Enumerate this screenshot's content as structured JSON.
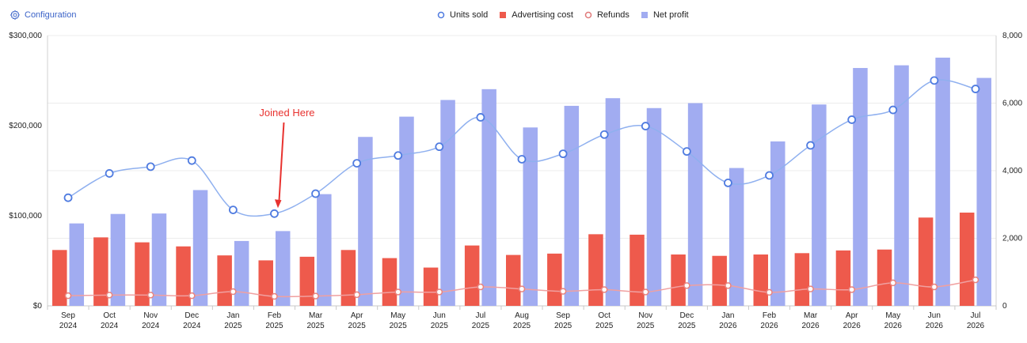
{
  "toolbar": {
    "config_label": "Configuration",
    "config_icon": "gear-icon"
  },
  "colors": {
    "units": "#8fb0ef",
    "advertising": "#ee5a4c",
    "refunds": "#f0a0a0",
    "net_profit": "#a1acf1",
    "annotation": "#e8322f"
  },
  "chart_data": {
    "type": "bar",
    "title": "",
    "legend_position": "top-center",
    "grid": true,
    "categories": [
      "Sep 2024",
      "Oct 2024",
      "Nov 2024",
      "Dec 2024",
      "Jan 2025",
      "Feb 2025",
      "Mar 2025",
      "Apr 2025",
      "May 2025",
      "Jun 2025",
      "Jul 2025",
      "Aug 2025",
      "Sep 2025",
      "Oct 2025",
      "Nov 2025",
      "Dec 2025",
      "Jan 2026",
      "Feb 2026",
      "Mar 2026",
      "Apr 2026",
      "May 2026",
      "Jun 2026",
      "Jul 2026"
    ],
    "x_tick_labels": [
      [
        "Sep",
        "2024"
      ],
      [
        "Oct",
        "2024"
      ],
      [
        "Nov",
        "2024"
      ],
      [
        "Dec",
        "2024"
      ],
      [
        "Jan",
        "2025"
      ],
      [
        "Feb",
        "2025"
      ],
      [
        "Mar",
        "2025"
      ],
      [
        "Apr",
        "2025"
      ],
      [
        "May",
        "2025"
      ],
      [
        "Jun",
        "2025"
      ],
      [
        "Jul",
        "2025"
      ],
      [
        "Aug",
        "2025"
      ],
      [
        "Sep",
        "2025"
      ],
      [
        "Oct",
        "2025"
      ],
      [
        "Nov",
        "2025"
      ],
      [
        "Dec",
        "2025"
      ],
      [
        "Jan",
        "2026"
      ],
      [
        "Feb",
        "2026"
      ],
      [
        "Mar",
        "2026"
      ],
      [
        "Apr",
        "2026"
      ],
      [
        "May",
        "2026"
      ],
      [
        "Jun",
        "2026"
      ],
      [
        "Jul",
        "2026"
      ]
    ],
    "y_left": {
      "ticks": [
        "$0",
        "$100,000",
        "$200,000",
        "$300,000"
      ],
      "ylim": [
        0,
        300000
      ]
    },
    "y_right": {
      "ticks": [
        "0",
        "2,000",
        "4,000",
        "6,000",
        "8,000"
      ],
      "ylim": [
        0,
        8000
      ]
    },
    "series": [
      {
        "name": "Units sold",
        "type": "line",
        "axis": "right",
        "values": [
          3200,
          3920,
          4120,
          4300,
          2840,
          2730,
          3320,
          4220,
          4450,
          4710,
          5580,
          4340,
          4500,
          5070,
          5320,
          4570,
          3640,
          3860,
          4750,
          5510,
          5800,
          6670,
          6420
        ]
      },
      {
        "name": "Advertising cost",
        "type": "bar",
        "axis": "left",
        "values": [
          62000,
          76000,
          70500,
          66000,
          56000,
          50500,
          54500,
          62000,
          53000,
          42500,
          67000,
          56500,
          58000,
          79500,
          79000,
          57000,
          55500,
          57000,
          58500,
          61500,
          62500,
          98000,
          103500
        ]
      },
      {
        "name": "Refunds",
        "type": "line",
        "axis": "right",
        "values": [
          300,
          320,
          320,
          300,
          420,
          280,
          290,
          330,
          410,
          410,
          560,
          500,
          430,
          480,
          410,
          600,
          600,
          400,
          500,
          480,
          680,
          560,
          770
        ]
      },
      {
        "name": "Net profit",
        "type": "bar",
        "axis": "left",
        "values": [
          91500,
          102000,
          102500,
          128500,
          72000,
          83000,
          124000,
          187500,
          210000,
          228500,
          240500,
          198000,
          222000,
          230500,
          219500,
          225000,
          153000,
          182500,
          223500,
          264000,
          267000,
          275500,
          253000
        ]
      }
    ],
    "annotations": [
      {
        "text": "Joined Here",
        "category": "Feb 2025"
      }
    ]
  }
}
